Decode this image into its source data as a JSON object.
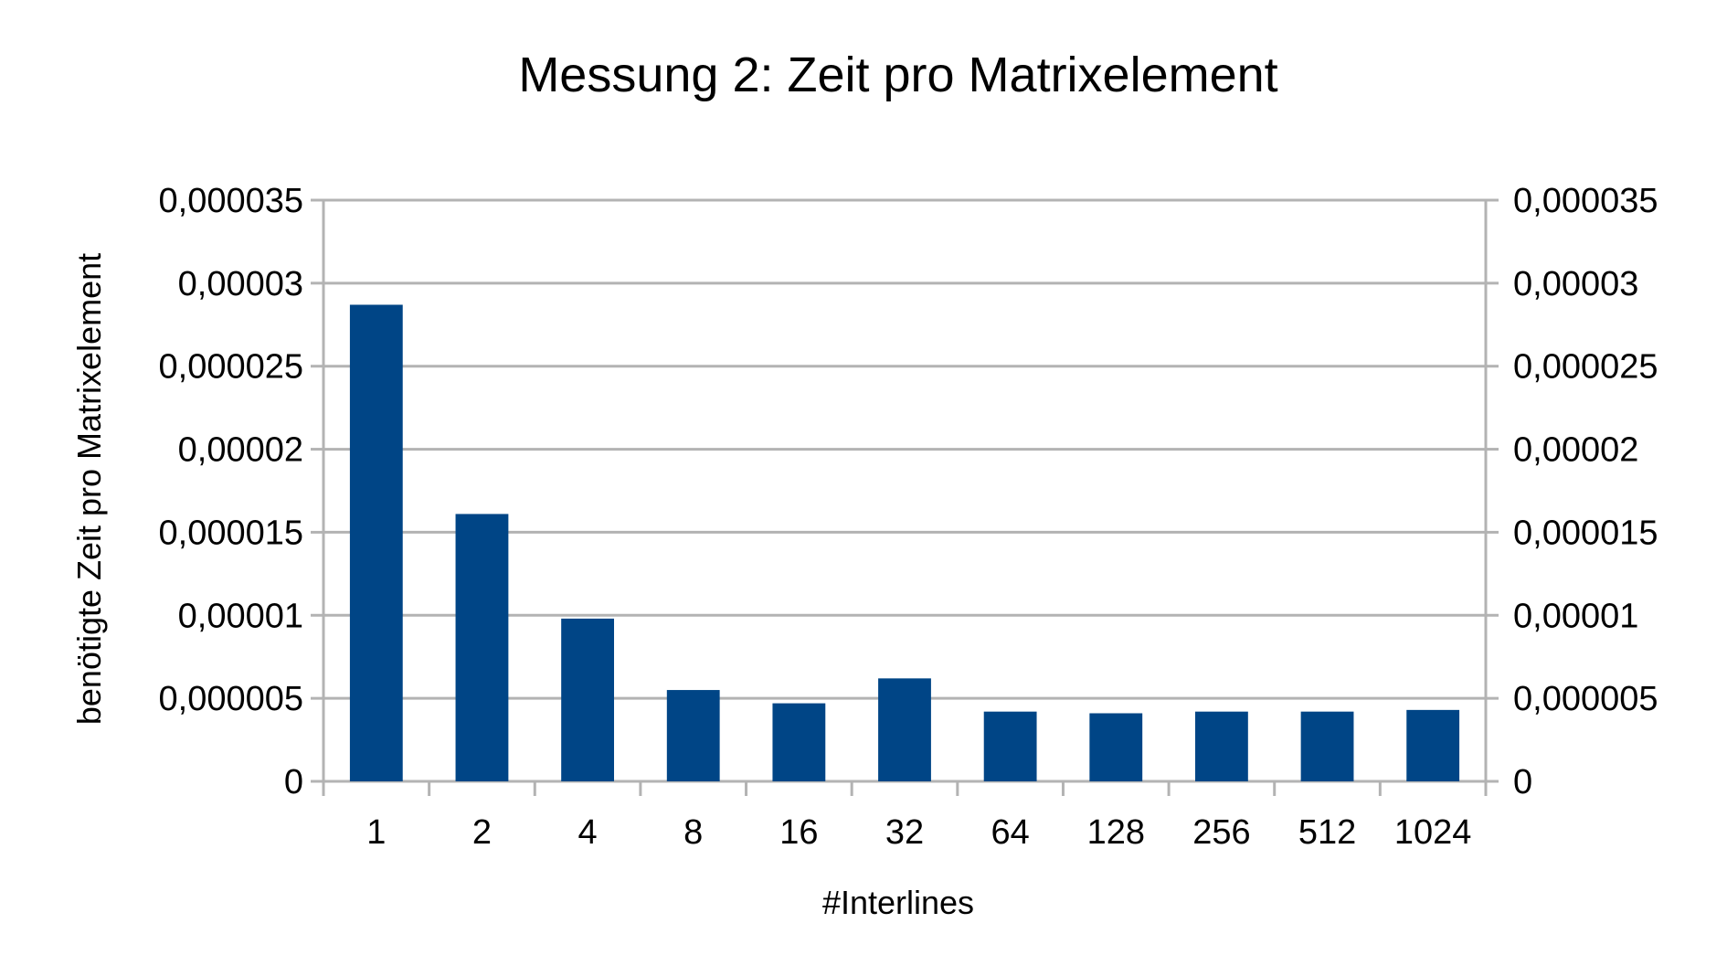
{
  "chart_data": {
    "type": "bar",
    "title": "Messung 2: Zeit pro Matrixelement",
    "xlabel": "#Interlines",
    "ylabel": "benötigte Zeit pro Matrixelement",
    "categories": [
      "1",
      "2",
      "4",
      "8",
      "16",
      "32",
      "64",
      "128",
      "256",
      "512",
      "1024"
    ],
    "values": [
      2.87e-05,
      1.61e-05,
      9.8e-06,
      5.5e-06,
      4.7e-06,
      6.2e-06,
      4.2e-06,
      4.1e-06,
      4.2e-06,
      4.2e-06,
      4.3e-06
    ],
    "ylim": [
      0,
      3.5e-05
    ],
    "yticks": [
      0,
      5e-06,
      1e-05,
      1.5e-05,
      2e-05,
      2.5e-05,
      3e-05,
      3.5e-05
    ],
    "ytick_labels": [
      "0",
      "0,000005",
      "0,00001",
      "0,000015",
      "0,00002",
      "0,000025",
      "0,00003",
      "0,000035"
    ],
    "secondary_y_axis": true,
    "grid": true,
    "legend": "none",
    "bar_color": "#004586",
    "grid_color": "#b3b3b3"
  }
}
